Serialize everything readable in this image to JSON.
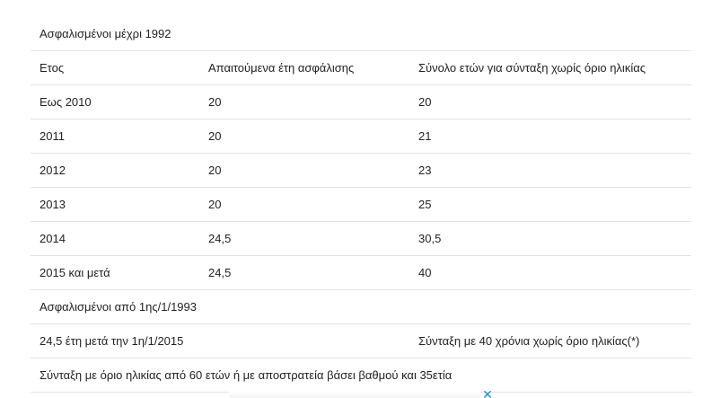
{
  "table": {
    "title": "Ασφαλισμένοι μέχρι 1992",
    "headers": [
      "Ετος",
      "Απαιτούμενα έτη ασφάλισης",
      "Σύνολο ετών για σύνταξη χωρίς όριο ηλικίας"
    ],
    "rows": [
      [
        "Εως 2010",
        "20",
        "20"
      ],
      [
        "2011",
        "20",
        "21"
      ],
      [
        "2012",
        "20",
        "23"
      ],
      [
        "2013",
        "20",
        "25"
      ],
      [
        "2014",
        "24,5",
        "30,5"
      ],
      [
        "2015 και μετά",
        "24,5",
        "40"
      ]
    ],
    "section2_title": "Ασφαλισμένοι από 1ης/1/1993",
    "section2_row": [
      "24,5 έτη μετά την 1η/1/2015",
      "Σύνταξη με 40 χρόνια χωρίς όριο ηλικίας(*)"
    ],
    "footer_note": "Σύνταξη με όριο ηλικίας από 60 ετών ή με αποστρατεία βάσει βαθμού και 35ετία"
  },
  "ad": {
    "close_glyph": "✕"
  }
}
